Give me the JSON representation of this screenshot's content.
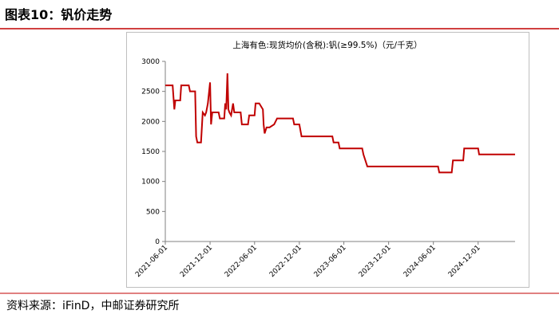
{
  "header": {
    "title": "图表10：钒价走势"
  },
  "chart_data": {
    "type": "line",
    "title": "上海有色:现货均价(含税):钒(≥99.5%)（元/千克）",
    "x": [
      "2021-06-01",
      "2021-07-01",
      "2021-07-08",
      "2021-07-12",
      "2021-08-01",
      "2021-08-05",
      "2021-09-05",
      "2021-09-10",
      "2021-10-01",
      "2021-10-05",
      "2021-10-10",
      "2021-10-25",
      "2021-11-01",
      "2021-11-10",
      "2021-11-15",
      "2021-11-22",
      "2021-12-01",
      "2021-12-05",
      "2021-12-10",
      "2022-01-05",
      "2022-01-10",
      "2022-01-28",
      "2022-02-01",
      "2022-02-05",
      "2022-02-10",
      "2022-02-14",
      "2022-02-18",
      "2022-02-25",
      "2022-03-05",
      "2022-03-10",
      "2022-04-05",
      "2022-04-10",
      "2022-05-05",
      "2022-05-10",
      "2022-06-01",
      "2022-06-05",
      "2022-06-20",
      "2022-07-05",
      "2022-07-08",
      "2022-07-12",
      "2022-07-20",
      "2022-08-01",
      "2022-08-20",
      "2022-09-01",
      "2022-11-05",
      "2022-11-10",
      "2022-12-01",
      "2022-12-10",
      "2023-04-15",
      "2023-04-20",
      "2023-05-10",
      "2023-05-15",
      "2023-08-15",
      "2023-08-20",
      "2023-09-01",
      "2023-09-05",
      "2024-06-20",
      "2024-06-25",
      "2024-08-15",
      "2024-08-20",
      "2024-10-01",
      "2024-10-05",
      "2024-12-01",
      "2024-12-05",
      "2025-05-01"
    ],
    "series": [
      {
        "name": "钒",
        "color": "#c00000",
        "values": [
          2600,
          2600,
          2200,
          2350,
          2350,
          2600,
          2600,
          2500,
          2500,
          1750,
          1650,
          1650,
          2150,
          2100,
          2150,
          2300,
          2650,
          1950,
          2150,
          2150,
          2050,
          2050,
          2300,
          2200,
          2800,
          2200,
          2150,
          2100,
          2300,
          2150,
          2150,
          1950,
          1950,
          2100,
          2100,
          2300,
          2300,
          2200,
          1950,
          1800,
          1900,
          1900,
          1950,
          2050,
          2050,
          1950,
          1950,
          1750,
          1750,
          1650,
          1650,
          1550,
          1550,
          1450,
          1300,
          1250,
          1250,
          1150,
          1150,
          1350,
          1350,
          1550,
          1550,
          1450,
          1450
        ]
      }
    ],
    "xlim": [
      "2021-06-01",
      "2025-05-01"
    ],
    "xticks": [
      "2021-06-01",
      "2021-12-01",
      "2022-06-01",
      "2022-12-01",
      "2023-06-01",
      "2023-12-01",
      "2024-06-01",
      "2024-12-01"
    ],
    "ylim": [
      0,
      3000
    ],
    "yticks": [
      0,
      500,
      1000,
      1500,
      2000,
      2500,
      3000
    ]
  },
  "footer": {
    "source": "资料来源：iFinD，中邮证券研究所"
  }
}
